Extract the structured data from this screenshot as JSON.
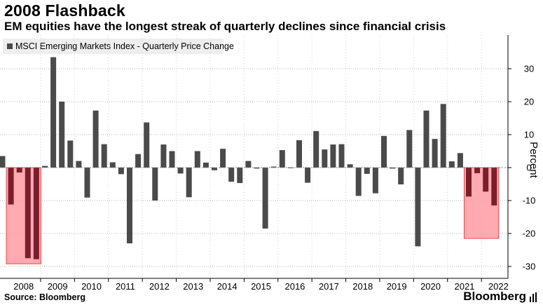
{
  "chart_data": {
    "type": "bar",
    "title": "2008 Flashback",
    "subtitle": "EM equities have the longest streak of quarterly declines since financial crisis",
    "legend": "MSCI Emerging Markets Index - Quarterly Price Change",
    "ylabel": "Percent",
    "ylim": [
      -33,
      39
    ],
    "yticks": [
      30,
      20,
      10,
      0,
      -10,
      -20,
      -30
    ],
    "year_labels": [
      "2008",
      "2009",
      "2010",
      "2011",
      "2012",
      "2013",
      "2014",
      "2015",
      "2016",
      "2017",
      "2018",
      "2019",
      "2020",
      "2021",
      "2022"
    ],
    "quarters": [
      "2007Q4",
      "2008Q1",
      "2008Q2",
      "2008Q3",
      "2008Q4",
      "2009Q1",
      "2009Q2",
      "2009Q3",
      "2009Q4",
      "2010Q1",
      "2010Q2",
      "2010Q3",
      "2010Q4",
      "2011Q1",
      "2011Q2",
      "2011Q3",
      "2011Q4",
      "2012Q1",
      "2012Q2",
      "2012Q3",
      "2012Q4",
      "2013Q1",
      "2013Q2",
      "2013Q3",
      "2013Q4",
      "2014Q1",
      "2014Q2",
      "2014Q3",
      "2014Q4",
      "2015Q1",
      "2015Q2",
      "2015Q3",
      "2015Q4",
      "2016Q1",
      "2016Q2",
      "2016Q3",
      "2016Q4",
      "2017Q1",
      "2017Q2",
      "2017Q3",
      "2017Q4",
      "2018Q1",
      "2018Q2",
      "2018Q3",
      "2018Q4",
      "2019Q1",
      "2019Q2",
      "2019Q3",
      "2019Q4",
      "2020Q1",
      "2020Q2",
      "2020Q3",
      "2020Q4",
      "2021Q1",
      "2021Q2",
      "2021Q3",
      "2021Q4",
      "2022Q1",
      "2022Q2",
      "2022Q3"
    ],
    "values": [
      3.5,
      -11.2,
      -1.5,
      -27.5,
      -27.8,
      0.5,
      33.5,
      20.0,
      8.2,
      2.0,
      -9.1,
      17.3,
      7.1,
      1.6,
      -2.0,
      -23.0,
      4.1,
      13.7,
      -10.0,
      7.0,
      5.0,
      -1.8,
      -9.0,
      5.0,
      1.5,
      -0.8,
      5.7,
      -4.3,
      -4.7,
      2.0,
      -0.3,
      -18.5,
      0.3,
      5.3,
      -0.2,
      8.3,
      -4.6,
      11.1,
      5.5,
      7.0,
      7.1,
      1.0,
      -8.6,
      -1.9,
      -7.8,
      9.6,
      -0.3,
      -5.1,
      11.4,
      -23.9,
      17.3,
      8.7,
      19.3,
      1.9,
      4.4,
      -8.8,
      -1.7,
      -7.3,
      -11.5,
      0.0
    ],
    "highlights": [
      {
        "from_quarter": "2008Q1",
        "to_quarter": "2008Q4",
        "y_range": [
          -29.2,
          0
        ],
        "color": "#ff9aa2",
        "border": "#e8474f"
      },
      {
        "from_quarter": "2021Q3",
        "to_quarter": "2022Q2",
        "y_range": [
          -21.5,
          0
        ],
        "color": "#ff9aa2",
        "border": "#e8474f"
      }
    ],
    "bar_color": "#4a4a4a",
    "highlight_bar_color": "#7a1f2a",
    "grid": "dotted horizontal"
  },
  "footer": {
    "source": "Source: Bloomberg",
    "brand": "Bloomberg"
  }
}
